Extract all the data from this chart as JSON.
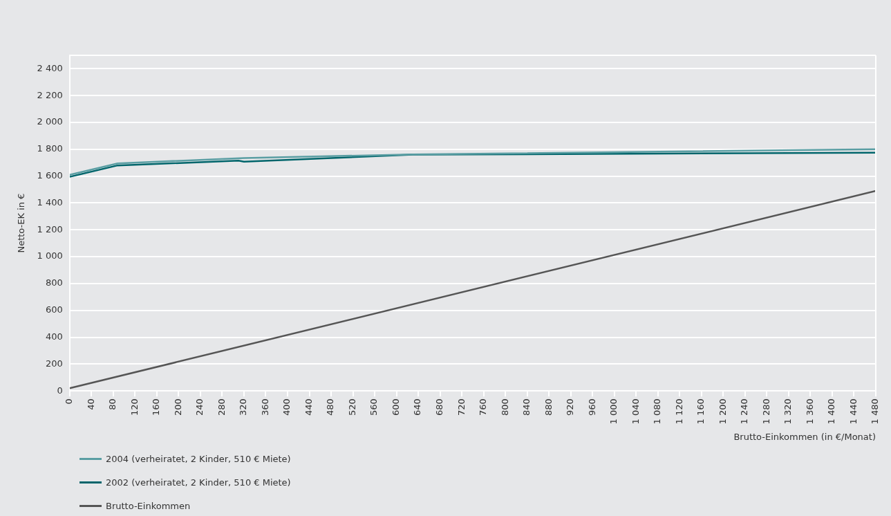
{
  "chart_data": {
    "type": "line",
    "xlabel": "Brutto-Einkommen (in €/Monat)",
    "ylabel": "Netto-EK in €",
    "xlim": [
      0,
      1480
    ],
    "ylim": [
      0,
      2500
    ],
    "xticks": [
      0,
      40,
      80,
      120,
      160,
      200,
      240,
      280,
      320,
      360,
      400,
      440,
      480,
      520,
      560,
      600,
      640,
      680,
      720,
      760,
      800,
      840,
      880,
      920,
      960,
      {
        "value": 1000,
        "label": "1 000"
      },
      {
        "value": 1040,
        "label": "1 040"
      },
      {
        "value": 1080,
        "label": "1 080"
      },
      {
        "value": 1120,
        "label": "1 120"
      },
      {
        "value": 1160,
        "label": "1 160"
      },
      {
        "value": 1200,
        "label": "1 200"
      },
      {
        "value": 1240,
        "label": "1 240"
      },
      {
        "value": 1280,
        "label": "1 280"
      },
      {
        "value": 1320,
        "label": "1 320"
      },
      {
        "value": 1360,
        "label": "1 360"
      },
      {
        "value": 1400,
        "label": "1 400"
      },
      {
        "value": 1440,
        "label": "1 440"
      },
      {
        "value": 1480,
        "label": "1 480"
      }
    ],
    "yticks": [
      0,
      200,
      400,
      600,
      800,
      {
        "value": 1000,
        "label": "1 000"
      },
      {
        "value": 1200,
        "label": "1 200"
      },
      {
        "value": 1400,
        "label": "1 400"
      },
      {
        "value": 1600,
        "label": "1 600"
      },
      {
        "value": 1800,
        "label": "1 800"
      },
      {
        "value": 2000,
        "label": "2 000"
      },
      {
        "value": 2200,
        "label": "2 200"
      },
      {
        "value": 2400,
        "label": "2 400"
      }
    ],
    "grid": "y",
    "legend": "bottom left",
    "marker": "none",
    "line_style": "solid",
    "series": [
      {
        "name": "2004 (verheiratet, 2 Kinder, 510 € Miete)",
        "color": "#5a9ea3",
        "x": [
          0,
          88,
          320,
          630,
          1480
        ],
        "values": [
          1610,
          1695,
          1735,
          1762,
          1800
        ]
      },
      {
        "name": "2002 (verheiratet, 2 Kinder, 510 € Miete)",
        "color": "#00656b",
        "x": [
          0,
          88,
          310,
          320,
          630,
          1480
        ],
        "values": [
          1595,
          1680,
          1715,
          1708,
          1760,
          1775
        ]
      },
      {
        "name": "Brutto-Einkommen",
        "color": "#555555",
        "x": [
          0,
          1480
        ],
        "values": [
          20,
          1490
        ]
      }
    ]
  }
}
